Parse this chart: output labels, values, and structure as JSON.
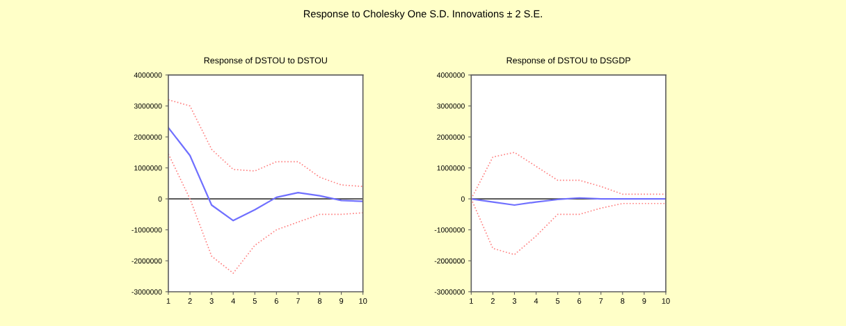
{
  "chart_data": [
    {
      "type": "line",
      "title": "Response of DSTOU to DSTOU",
      "annotations": [
        "Response to Cholesky One S.D. Innovations ± 2 S.E."
      ],
      "x": [
        1,
        2,
        3,
        4,
        5,
        6,
        7,
        8,
        9,
        10
      ],
      "series": [
        {
          "color": "#7070ff",
          "line_style": "solid",
          "values": [
            2300000,
            1400000,
            -200000,
            -700000,
            -350000,
            50000,
            200000,
            100000,
            -50000,
            -80000
          ]
        },
        {
          "color": "#ff8080",
          "line_style": "dotted",
          "values": [
            3200000,
            3000000,
            1600000,
            950000,
            900000,
            1200000,
            1200000,
            700000,
            450000,
            400000
          ]
        },
        {
          "color": "#ff8080",
          "line_style": "dotted",
          "values": [
            1450000,
            0,
            -1850000,
            -2400000,
            -1500000,
            -1000000,
            -750000,
            -500000,
            -500000,
            -450000
          ]
        }
      ],
      "xlim": [
        1,
        10
      ],
      "xticks": [
        1,
        2,
        3,
        4,
        5,
        6,
        7,
        8,
        9,
        10
      ],
      "ylim": [
        -3000000,
        4000000
      ],
      "yticks": [
        -3000000,
        -2000000,
        -1000000,
        0,
        1000000,
        2000000,
        3000000,
        4000000
      ],
      "ref_lines": [
        {
          "axis": "y",
          "value": 0,
          "color": "#404040"
        }
      ],
      "grid": false,
      "legend": false
    },
    {
      "type": "line",
      "title": "Response of DSTOU to DSGDP",
      "x": [
        1,
        2,
        3,
        4,
        5,
        6,
        7,
        8,
        9,
        10
      ],
      "series": [
        {
          "color": "#7070ff",
          "line_style": "solid",
          "values": [
            0,
            -100000,
            -200000,
            -100000,
            -20000,
            30000,
            0,
            0,
            0,
            0
          ]
        },
        {
          "color": "#ff8080",
          "line_style": "dotted",
          "values": [
            0,
            1350000,
            1500000,
            1050000,
            600000,
            600000,
            400000,
            150000,
            150000,
            150000
          ]
        },
        {
          "color": "#ff8080",
          "line_style": "dotted",
          "values": [
            0,
            -1600000,
            -1800000,
            -1200000,
            -500000,
            -500000,
            -300000,
            -150000,
            -150000,
            -150000
          ]
        }
      ],
      "xlim": [
        1,
        10
      ],
      "xticks": [
        1,
        2,
        3,
        4,
        5,
        6,
        7,
        8,
        9,
        10
      ],
      "ylim": [
        -3000000,
        4000000
      ],
      "yticks": [
        -3000000,
        -2000000,
        -1000000,
        0,
        1000000,
        2000000,
        3000000,
        4000000
      ],
      "ref_lines": [
        {
          "axis": "y",
          "value": 0,
          "color": "#404040"
        }
      ],
      "grid": false,
      "legend": false
    }
  ]
}
